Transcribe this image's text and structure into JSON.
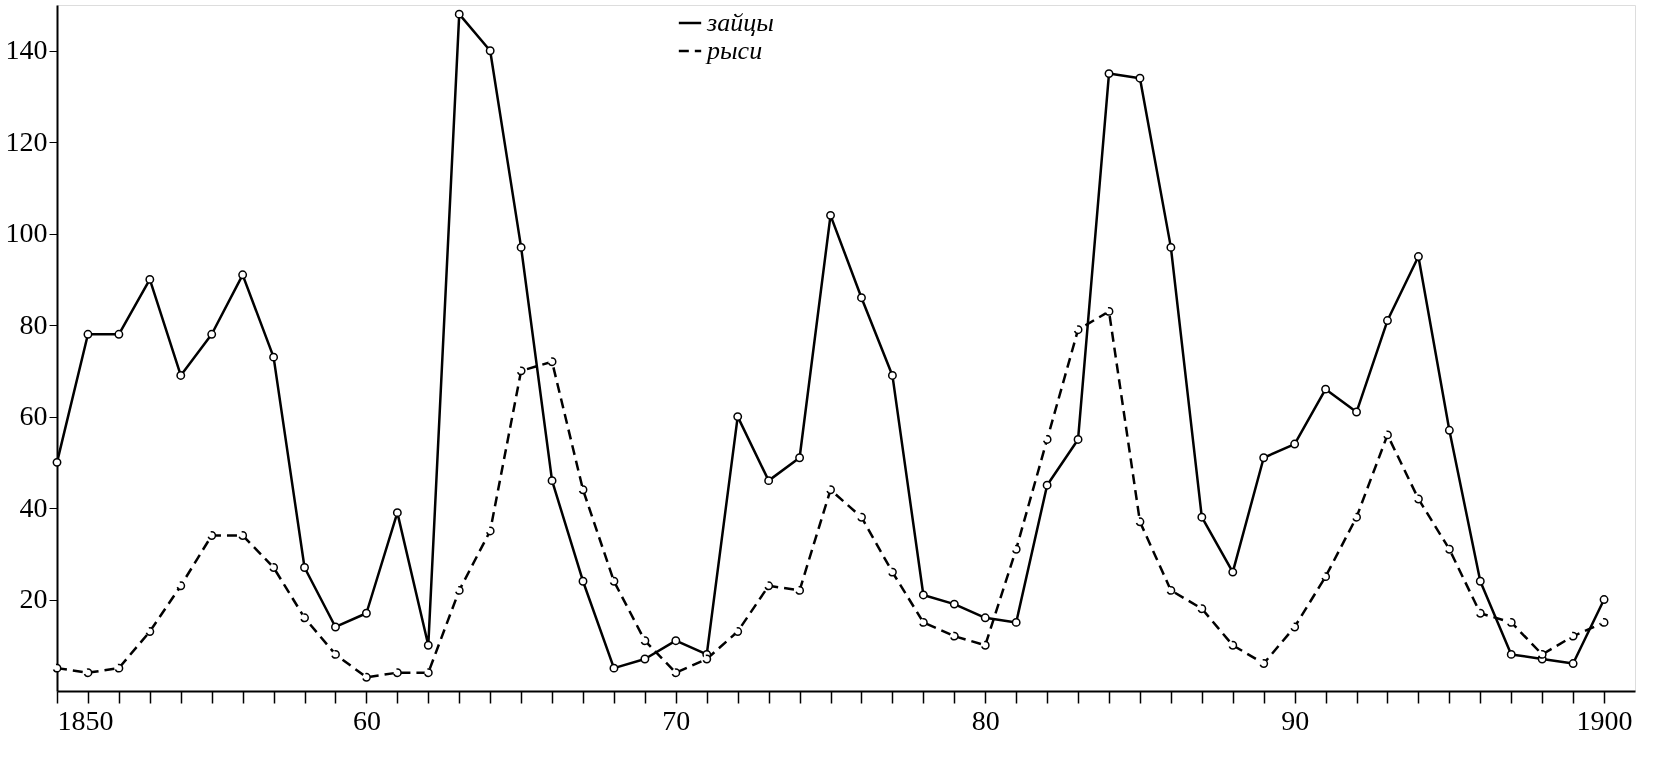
{
  "chart_data": {
    "type": "line",
    "x": [
      1850,
      1851,
      1852,
      1853,
      1854,
      1855,
      1856,
      1857,
      1858,
      1859,
      1860,
      1861,
      1862,
      1863,
      1864,
      1865,
      1866,
      1867,
      1868,
      1869,
      1870,
      1871,
      1872,
      1873,
      1874,
      1875,
      1876,
      1877,
      1878,
      1879,
      1880,
      1881,
      1882,
      1883,
      1884,
      1885,
      1886,
      1887,
      1888,
      1889,
      1890,
      1891,
      1892,
      1893,
      1894,
      1895,
      1896,
      1897,
      1898,
      1899,
      1900
    ],
    "series": [
      {
        "name": "зайцы",
        "color": "#000000",
        "line_style": "solid",
        "values": [
          50,
          78,
          78,
          90,
          69,
          78,
          91,
          73,
          27,
          14,
          17,
          39,
          10,
          148,
          140,
          97,
          46,
          24,
          5,
          7,
          11,
          8,
          60,
          46,
          51,
          104,
          86,
          69,
          21,
          19,
          16,
          15,
          45,
          55,
          135,
          134,
          97,
          38,
          26,
          51,
          54,
          66,
          61,
          81,
          95,
          57,
          24,
          8,
          7,
          6,
          20
        ]
      },
      {
        "name": "рыси",
        "color": "#000000",
        "line_style": "dashed",
        "values": [
          5,
          4,
          5,
          13,
          23,
          34,
          34,
          27,
          16,
          8,
          3,
          4,
          4,
          22,
          35,
          70,
          72,
          44,
          24,
          11,
          4,
          7,
          13,
          23,
          22,
          44,
          38,
          26,
          15,
          12,
          10,
          31,
          55,
          79,
          83,
          37,
          22,
          18,
          10,
          6,
          14,
          25,
          38,
          56,
          42,
          31,
          17,
          15,
          8,
          12,
          15
        ]
      }
    ],
    "xlim": [
      1850,
      1901
    ],
    "ylim": [
      0,
      150
    ],
    "xticks": [
      {
        "value": 1850,
        "label": "1850"
      },
      {
        "value": 1851,
        "label": null
      },
      {
        "value": 1852,
        "label": null
      },
      {
        "value": 1853,
        "label": null
      },
      {
        "value": 1854,
        "label": null
      },
      {
        "value": 1855,
        "label": null
      },
      {
        "value": 1856,
        "label": null
      },
      {
        "value": 1857,
        "label": null
      },
      {
        "value": 1858,
        "label": null
      },
      {
        "value": 1859,
        "label": null
      },
      {
        "value": 1860,
        "label": "60"
      },
      {
        "value": 1861,
        "label": null
      },
      {
        "value": 1862,
        "label": null
      },
      {
        "value": 1863,
        "label": null
      },
      {
        "value": 1864,
        "label": null
      },
      {
        "value": 1865,
        "label": null
      },
      {
        "value": 1866,
        "label": null
      },
      {
        "value": 1867,
        "label": null
      },
      {
        "value": 1868,
        "label": null
      },
      {
        "value": 1869,
        "label": null
      },
      {
        "value": 1870,
        "label": "70"
      },
      {
        "value": 1871,
        "label": null
      },
      {
        "value": 1872,
        "label": null
      },
      {
        "value": 1873,
        "label": null
      },
      {
        "value": 1874,
        "label": null
      },
      {
        "value": 1875,
        "label": null
      },
      {
        "value": 1876,
        "label": null
      },
      {
        "value": 1877,
        "label": null
      },
      {
        "value": 1878,
        "label": null
      },
      {
        "value": 1879,
        "label": null
      },
      {
        "value": 1880,
        "label": "80"
      },
      {
        "value": 1881,
        "label": null
      },
      {
        "value": 1882,
        "label": null
      },
      {
        "value": 1883,
        "label": null
      },
      {
        "value": 1884,
        "label": null
      },
      {
        "value": 1885,
        "label": null
      },
      {
        "value": 1886,
        "label": null
      },
      {
        "value": 1887,
        "label": null
      },
      {
        "value": 1888,
        "label": null
      },
      {
        "value": 1889,
        "label": null
      },
      {
        "value": 1890,
        "label": "90"
      },
      {
        "value": 1891,
        "label": null
      },
      {
        "value": 1892,
        "label": null
      },
      {
        "value": 1893,
        "label": null
      },
      {
        "value": 1894,
        "label": null
      },
      {
        "value": 1895,
        "label": null
      },
      {
        "value": 1896,
        "label": null
      },
      {
        "value": 1897,
        "label": null
      },
      {
        "value": 1898,
        "label": null
      },
      {
        "value": 1899,
        "label": null
      },
      {
        "value": 1900,
        "label": "1900"
      }
    ],
    "yticks": [
      20,
      40,
      60,
      80,
      100,
      120,
      140
    ],
    "legend": "top",
    "marker": "circle",
    "grid": false
  }
}
